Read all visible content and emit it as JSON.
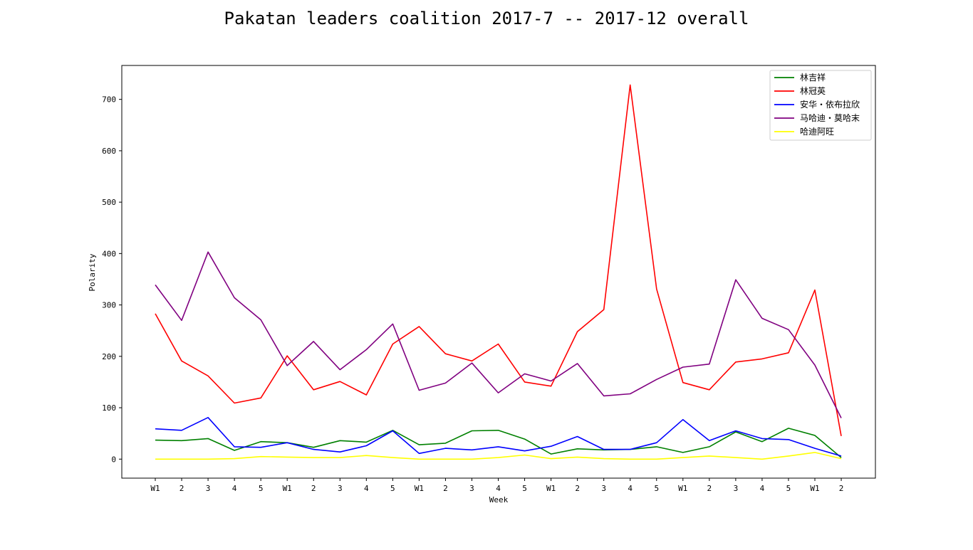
{
  "chart_data": {
    "type": "line",
    "title": "Pakatan leaders coalition 2017-7 -- 2017-12 overall",
    "xlabel": "Week",
    "ylabel": "Polarity",
    "categories": [
      "W1",
      "2",
      "3",
      "4",
      "5",
      "W1",
      "2",
      "3",
      "4",
      "5",
      "W1",
      "2",
      "3",
      "4",
      "5",
      "W1",
      "2",
      "3",
      "4",
      "5",
      "W1",
      "2",
      "3",
      "4",
      "5",
      "W1",
      "2"
    ],
    "y_ticks": [
      0,
      100,
      200,
      300,
      400,
      500,
      600,
      700
    ],
    "ylim": [
      -37,
      766
    ],
    "grid": false,
    "legend_position": "top-right",
    "series": [
      {
        "name": "林吉祥",
        "color": "#008000",
        "values": [
          37,
          36,
          40,
          17,
          34,
          32,
          23,
          36,
          33,
          56,
          28,
          31,
          55,
          56,
          39,
          10,
          20,
          18,
          19,
          24,
          13,
          24,
          53,
          34,
          60,
          46,
          3
        ]
      },
      {
        "name": "林冠英",
        "color": "#ff0000",
        "values": [
          283,
          191,
          162,
          109,
          119,
          201,
          135,
          151,
          125,
          224,
          258,
          205,
          191,
          224,
          150,
          142,
          248,
          291,
          728,
          331,
          149,
          135,
          189,
          195,
          207,
          329,
          45
        ]
      },
      {
        "name": "安华・依布拉欣",
        "color": "#0000ff",
        "values": [
          59,
          56,
          81,
          24,
          23,
          32,
          19,
          14,
          26,
          55,
          11,
          21,
          18,
          24,
          16,
          25,
          44,
          19,
          19,
          32,
          77,
          36,
          55,
          40,
          38,
          21,
          6
        ]
      },
      {
        "name": "马哈迪・莫哈末",
        "color": "#800080",
        "values": [
          339,
          270,
          403,
          314,
          271,
          182,
          229,
          174,
          213,
          263,
          134,
          148,
          187,
          129,
          166,
          152,
          186,
          123,
          127,
          155,
          179,
          185,
          349,
          274,
          252,
          183,
          80
        ]
      },
      {
        "name": "哈迪阿旺",
        "color": "#ffff00",
        "values": [
          0,
          0,
          0,
          1,
          5,
          4,
          3,
          3,
          7,
          3,
          0,
          0,
          0,
          3,
          8,
          1,
          4,
          1,
          0,
          0,
          3,
          6,
          3,
          0,
          6,
          13,
          1
        ]
      }
    ]
  }
}
